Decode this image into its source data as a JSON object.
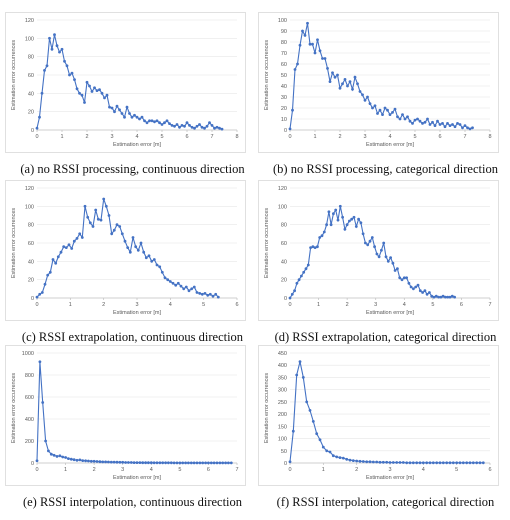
{
  "chart_data": [
    {
      "type": "line",
      "caption": "(a) no RSSI processing, continuous direction",
      "xlabel": "Estimation error [m]",
      "ylabel": "Estimation error occurrences",
      "xlim": [
        0,
        8
      ],
      "ylim": [
        0,
        120
      ],
      "xticks": [
        0,
        1,
        2,
        3,
        4,
        5,
        6,
        7,
        8
      ],
      "yticks": [
        0,
        20,
        40,
        60,
        80,
        100,
        120
      ],
      "grid": "horizontal",
      "color": "#4472C4",
      "x": [
        0,
        0.1,
        0.2,
        0.3,
        0.4,
        0.5,
        0.6,
        0.7,
        0.8,
        0.9,
        1.0,
        1.1,
        1.2,
        1.3,
        1.4,
        1.5,
        1.6,
        1.7,
        1.8,
        1.9,
        2.0,
        2.1,
        2.2,
        2.3,
        2.4,
        2.5,
        2.6,
        2.7,
        2.8,
        2.9,
        3.0,
        3.1,
        3.2,
        3.3,
        3.4,
        3.5,
        3.6,
        3.7,
        3.8,
        3.9,
        4.0,
        4.1,
        4.2,
        4.3,
        4.4,
        4.5,
        4.6,
        4.7,
        4.8,
        4.9,
        5.0,
        5.1,
        5.2,
        5.3,
        5.4,
        5.5,
        5.6,
        5.7,
        5.8,
        5.9,
        6.0,
        6.1,
        6.2,
        6.3,
        6.4,
        6.5,
        6.6,
        6.7,
        6.8,
        6.9,
        7.0,
        7.1,
        7.2,
        7.3,
        7.4
      ],
      "y": [
        2,
        14,
        40,
        65,
        70,
        100,
        88,
        104,
        92,
        85,
        88,
        75,
        70,
        60,
        62,
        55,
        45,
        40,
        38,
        30,
        52,
        48,
        42,
        46,
        43,
        44,
        40,
        35,
        38,
        25,
        24,
        20,
        26,
        22,
        18,
        14,
        25,
        18,
        14,
        16,
        14,
        12,
        14,
        10,
        8,
        10,
        10,
        9,
        10,
        8,
        6,
        8,
        10,
        7,
        5,
        4,
        6,
        3,
        5,
        4,
        8,
        5,
        3,
        2,
        4,
        6,
        3,
        2,
        4,
        8,
        5,
        2,
        3,
        2,
        1
      ]
    },
    {
      "type": "line",
      "caption": "(b) no RSSI processing, categorical direction",
      "xlabel": "Estimation error [m]",
      "ylabel": "Estimation error occurrences",
      "xlim": [
        0,
        8
      ],
      "ylim": [
        0,
        100
      ],
      "xticks": [
        0,
        1,
        2,
        3,
        4,
        5,
        6,
        7,
        8
      ],
      "yticks": [
        0,
        10,
        20,
        30,
        40,
        50,
        60,
        70,
        80,
        90,
        100
      ],
      "grid": "horizontal",
      "color": "#4472C4",
      "x": [
        0,
        0.1,
        0.2,
        0.3,
        0.4,
        0.5,
        0.6,
        0.7,
        0.8,
        0.9,
        1.0,
        1.1,
        1.2,
        1.3,
        1.4,
        1.5,
        1.6,
        1.7,
        1.8,
        1.9,
        2.0,
        2.1,
        2.2,
        2.3,
        2.4,
        2.5,
        2.6,
        2.7,
        2.8,
        2.9,
        3.0,
        3.1,
        3.2,
        3.3,
        3.4,
        3.5,
        3.6,
        3.7,
        3.8,
        3.9,
        4.0,
        4.1,
        4.2,
        4.3,
        4.4,
        4.5,
        4.6,
        4.7,
        4.8,
        4.9,
        5.0,
        5.1,
        5.2,
        5.3,
        5.4,
        5.5,
        5.6,
        5.7,
        5.8,
        5.9,
        6.0,
        6.1,
        6.2,
        6.3,
        6.4,
        6.5,
        6.6,
        6.7,
        6.8,
        6.9,
        7.0,
        7.1,
        7.2,
        7.3
      ],
      "y": [
        1,
        18,
        55,
        60,
        77,
        90,
        86,
        97,
        78,
        78,
        70,
        82,
        72,
        65,
        65,
        56,
        44,
        52,
        48,
        50,
        38,
        42,
        46,
        40,
        44,
        37,
        48,
        42,
        35,
        32,
        27,
        30,
        24,
        20,
        22,
        15,
        18,
        14,
        20,
        18,
        14,
        16,
        19,
        12,
        10,
        14,
        10,
        12,
        8,
        6,
        9,
        10,
        8,
        6,
        7,
        10,
        5,
        7,
        4,
        8,
        5,
        6,
        3,
        6,
        4,
        5,
        3,
        6,
        5,
        2,
        4,
        2,
        1,
        2
      ]
    },
    {
      "type": "line",
      "caption": "(c) RSSI extrapolation, continuous direction",
      "xlabel": "Estimation error [m]",
      "ylabel": "Estimation error occurrences",
      "xlim": [
        0,
        6
      ],
      "ylim": [
        0,
        120
      ],
      "xticks": [
        0,
        1,
        2,
        3,
        4,
        5,
        6
      ],
      "yticks": [
        0,
        20,
        40,
        60,
        80,
        100,
        120
      ],
      "grid": "horizontal",
      "color": "#4472C4",
      "x": [
        0,
        0.08,
        0.16,
        0.24,
        0.32,
        0.4,
        0.48,
        0.56,
        0.64,
        0.72,
        0.8,
        0.88,
        0.96,
        1.04,
        1.12,
        1.2,
        1.28,
        1.36,
        1.44,
        1.52,
        1.6,
        1.68,
        1.76,
        1.84,
        1.92,
        2.0,
        2.08,
        2.16,
        2.24,
        2.32,
        2.4,
        2.48,
        2.56,
        2.64,
        2.72,
        2.8,
        2.88,
        2.96,
        3.04,
        3.12,
        3.2,
        3.28,
        3.36,
        3.44,
        3.52,
        3.6,
        3.68,
        3.76,
        3.84,
        3.92,
        4.0,
        4.08,
        4.16,
        4.24,
        4.32,
        4.4,
        4.48,
        4.56,
        4.64,
        4.72,
        4.8,
        4.88,
        4.96,
        5.04,
        5.12,
        5.2,
        5.28,
        5.36,
        5.44
      ],
      "y": [
        1,
        4,
        6,
        15,
        25,
        28,
        42,
        38,
        45,
        50,
        56,
        55,
        58,
        54,
        62,
        65,
        70,
        66,
        100,
        88,
        82,
        78,
        96,
        86,
        85,
        108,
        100,
        90,
        70,
        74,
        80,
        78,
        70,
        62,
        55,
        50,
        66,
        56,
        52,
        60,
        50,
        44,
        46,
        40,
        42,
        36,
        34,
        28,
        22,
        20,
        18,
        16,
        14,
        16,
        13,
        10,
        12,
        8,
        10,
        12,
        6,
        5,
        4,
        5,
        3,
        4,
        2,
        4,
        1
      ]
    },
    {
      "type": "line",
      "caption": "(d) RSSI extrapolation, categorical direction",
      "xlabel": "Estimation error [m]",
      "ylabel": "Estimation error occurrences",
      "xlim": [
        0,
        7
      ],
      "ylim": [
        0,
        120
      ],
      "xticks": [
        0,
        1,
        2,
        3,
        4,
        5,
        6,
        7
      ],
      "yticks": [
        0,
        20,
        40,
        60,
        80,
        100,
        120
      ],
      "grid": "horizontal",
      "color": "#4472C4",
      "x": [
        0,
        0.08,
        0.16,
        0.24,
        0.32,
        0.4,
        0.48,
        0.56,
        0.64,
        0.72,
        0.8,
        0.88,
        0.96,
        1.04,
        1.12,
        1.2,
        1.28,
        1.36,
        1.44,
        1.52,
        1.6,
        1.68,
        1.76,
        1.84,
        1.92,
        2.0,
        2.08,
        2.16,
        2.24,
        2.32,
        2.4,
        2.48,
        2.56,
        2.64,
        2.72,
        2.8,
        2.88,
        2.96,
        3.04,
        3.12,
        3.2,
        3.28,
        3.36,
        3.44,
        3.52,
        3.6,
        3.68,
        3.76,
        3.84,
        3.92,
        4.0,
        4.08,
        4.16,
        4.24,
        4.32,
        4.4,
        4.48,
        4.56,
        4.64,
        4.72,
        4.8,
        4.88,
        4.96,
        5.04,
        5.12,
        5.2,
        5.28,
        5.36,
        5.44,
        5.52,
        5.6,
        5.68,
        5.76
      ],
      "y": [
        0,
        4,
        8,
        16,
        20,
        24,
        28,
        32,
        36,
        55,
        56,
        55,
        56,
        66,
        68,
        72,
        80,
        94,
        80,
        92,
        96,
        85,
        100,
        88,
        75,
        80,
        84,
        86,
        88,
        78,
        86,
        82,
        70,
        60,
        58,
        62,
        66,
        56,
        48,
        45,
        52,
        60,
        45,
        40,
        44,
        38,
        30,
        32,
        22,
        20,
        22,
        22,
        16,
        12,
        10,
        12,
        14,
        8,
        6,
        8,
        4,
        6,
        2,
        1,
        2,
        1,
        1,
        2,
        1,
        1,
        1,
        2,
        1
      ]
    },
    {
      "type": "line",
      "caption": "(e) RSSI interpolation, continuous direction",
      "xlabel": "Estimation error [m]",
      "ylabel": "Estimation error occurrences",
      "xlim": [
        0,
        7
      ],
      "ylim": [
        0,
        1000
      ],
      "xticks": [
        0,
        1,
        2,
        3,
        4,
        5,
        6,
        7
      ],
      "yticks": [
        0,
        200,
        400,
        600,
        800,
        1000
      ],
      "grid": "horizontal",
      "color": "#4472C4",
      "x": [
        0,
        0.1,
        0.2,
        0.3,
        0.4,
        0.5,
        0.6,
        0.7,
        0.8,
        0.9,
        1.0,
        1.1,
        1.2,
        1.3,
        1.4,
        1.5,
        1.6,
        1.7,
        1.8,
        1.9,
        2.0,
        2.1,
        2.2,
        2.3,
        2.4,
        2.5,
        2.6,
        2.7,
        2.8,
        2.9,
        3.0,
        3.1,
        3.2,
        3.3,
        3.4,
        3.5,
        3.6,
        3.7,
        3.8,
        3.9,
        4.0,
        4.1,
        4.2,
        4.3,
        4.4,
        4.5,
        4.6,
        4.7,
        4.8,
        4.9,
        5.0,
        5.1,
        5.2,
        5.3,
        5.4,
        5.5,
        5.6,
        5.7,
        5.8,
        5.9,
        6.0,
        6.1,
        6.2,
        6.3,
        6.4,
        6.5,
        6.6,
        6.7,
        6.8
      ],
      "y": [
        20,
        920,
        550,
        200,
        110,
        80,
        70,
        60,
        65,
        55,
        50,
        40,
        35,
        30,
        25,
        28,
        22,
        20,
        18,
        15,
        15,
        14,
        12,
        10,
        10,
        9,
        8,
        8,
        7,
        6,
        6,
        5,
        5,
        5,
        4,
        4,
        4,
        3,
        3,
        3,
        3,
        2,
        2,
        2,
        2,
        2,
        2,
        2,
        1,
        1,
        1,
        1,
        1,
        1,
        1,
        1,
        1,
        1,
        1,
        1,
        1,
        1,
        1,
        1,
        1,
        1,
        1,
        1,
        1
      ]
    },
    {
      "type": "line",
      "caption": "(f) RSSI interpolation, categorical direction",
      "xlabel": "Estimation error [m]",
      "ylabel": "Estimation error occurrences",
      "xlim": [
        0,
        6
      ],
      "ylim": [
        0,
        450
      ],
      "xticks": [
        0,
        1,
        2,
        3,
        4,
        5,
        6
      ],
      "yticks": [
        0,
        50,
        100,
        150,
        200,
        250,
        300,
        350,
        400,
        450
      ],
      "grid": "horizontal",
      "color": "#4472C4",
      "x": [
        0,
        0.1,
        0.2,
        0.3,
        0.4,
        0.5,
        0.6,
        0.7,
        0.8,
        0.9,
        1.0,
        1.1,
        1.2,
        1.3,
        1.4,
        1.5,
        1.6,
        1.7,
        1.8,
        1.9,
        2.0,
        2.1,
        2.2,
        2.3,
        2.4,
        2.5,
        2.6,
        2.7,
        2.8,
        2.9,
        3.0,
        3.1,
        3.2,
        3.3,
        3.4,
        3.5,
        3.6,
        3.7,
        3.8,
        3.9,
        4.0,
        4.1,
        4.2,
        4.3,
        4.4,
        4.5,
        4.6,
        4.7,
        4.8,
        4.9,
        5.0,
        5.1,
        5.2,
        5.3,
        5.4,
        5.5,
        5.6,
        5.7,
        5.8
      ],
      "y": [
        5,
        130,
        360,
        415,
        350,
        250,
        215,
        170,
        120,
        95,
        65,
        50,
        45,
        30,
        25,
        22,
        20,
        15,
        12,
        10,
        8,
        7,
        6,
        5,
        5,
        4,
        4,
        3,
        3,
        3,
        2,
        2,
        2,
        2,
        2,
        1,
        1,
        1,
        1,
        1,
        1,
        1,
        1,
        1,
        1,
        1,
        1,
        1,
        1,
        1,
        1,
        1,
        1,
        1,
        1,
        1,
        1,
        1,
        1
      ]
    }
  ]
}
